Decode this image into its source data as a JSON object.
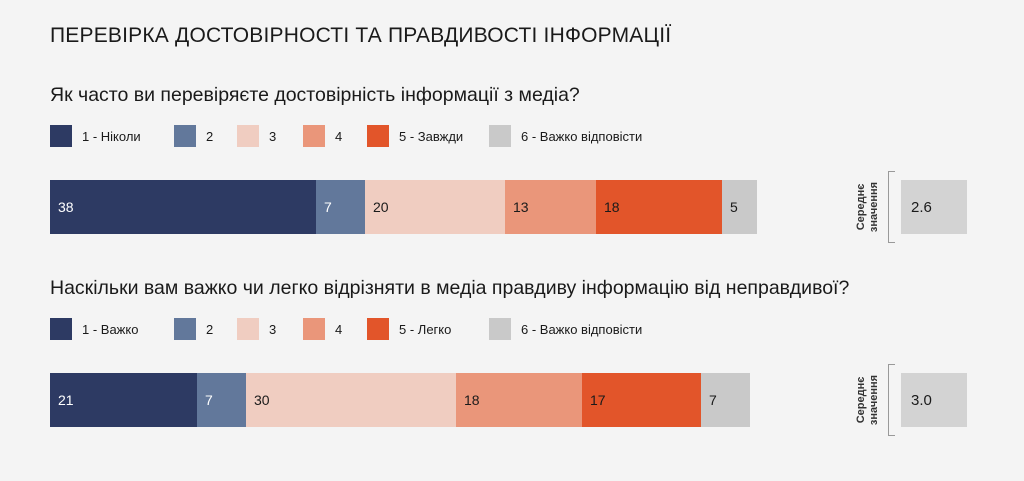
{
  "title": "ПЕРЕВІРКА ДОСТОВІРНОСТІ ТА ПРАВДИВОСТІ ІНФОРМАЦІЇ",
  "mean_label_line1": "Середнє",
  "mean_label_line2": "значення",
  "colors": [
    "#2d3a63",
    "#62789b",
    "#f0cdc1",
    "#ea967a",
    "#e2552a",
    "#c9c9c9"
  ],
  "chart_data": [
    {
      "type": "bar",
      "orientation": "horizontal-stacked",
      "title": "Як часто ви перевіряєте достовірність інформації з медіа?",
      "categories": [
        "1 - Ніколи",
        "2",
        "3",
        "4",
        "5 - Завжди",
        "6 - Важко відповісти"
      ],
      "values": [
        38,
        7,
        20,
        13,
        18,
        5
      ],
      "mean": "2.6"
    },
    {
      "type": "bar",
      "orientation": "horizontal-stacked",
      "title": "Наскільки вам важко чи легко відрізняти в медіа правдиву інформацію від неправдивої?",
      "categories": [
        "1 - Важко",
        "2",
        "3",
        "4",
        "5 - Легко",
        "6 - Важко відповісти"
      ],
      "values": [
        21,
        7,
        30,
        18,
        17,
        7
      ],
      "mean": "3.0"
    }
  ]
}
